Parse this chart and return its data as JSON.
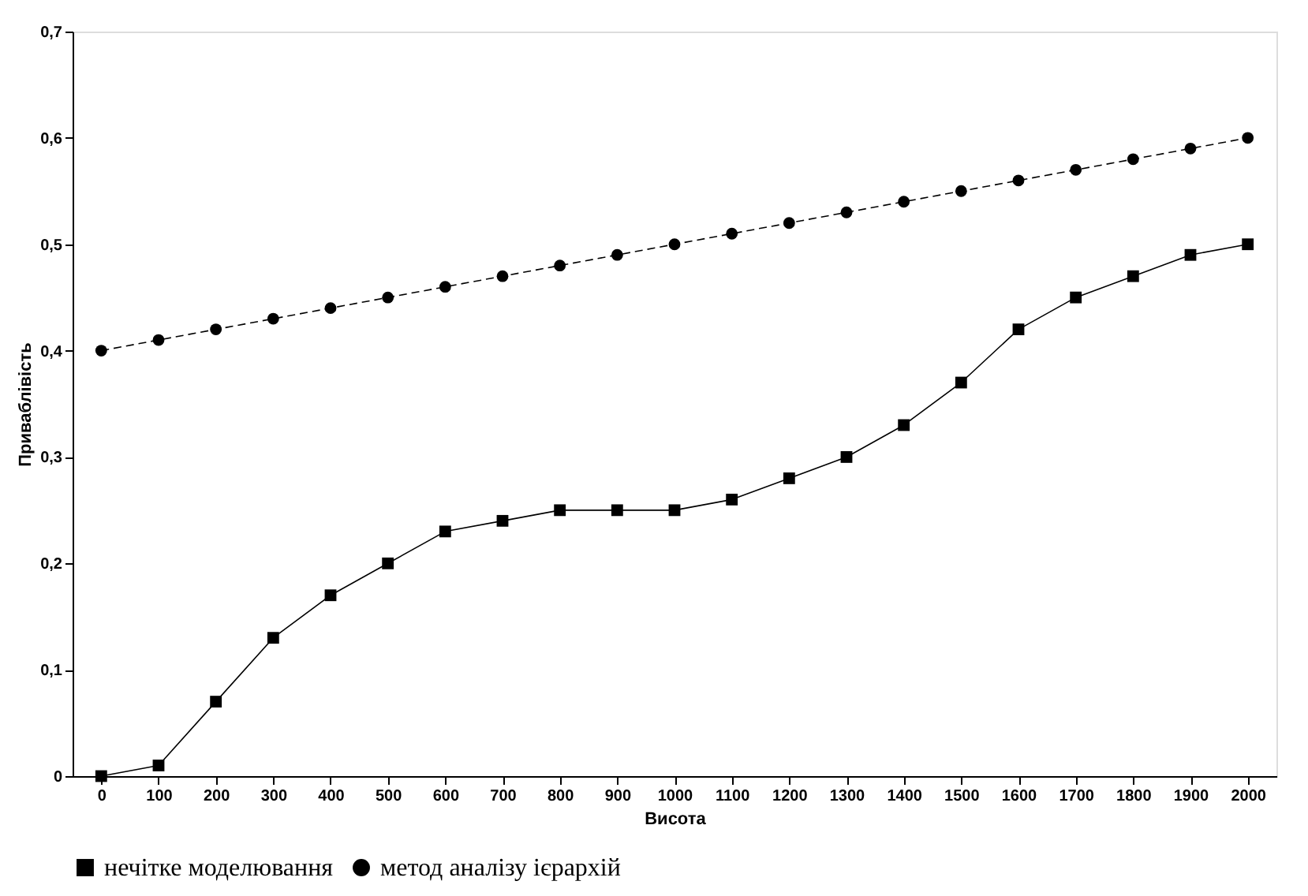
{
  "chart_data": {
    "type": "line",
    "xlabel": "Висота",
    "ylabel": "Приваблівість",
    "categories": [
      "0",
      "100",
      "200",
      "300",
      "400",
      "500",
      "600",
      "700",
      "800",
      "900",
      "1000",
      "1100",
      "1200",
      "1300",
      "1400",
      "1500",
      "1600",
      "1700",
      "1800",
      "1900",
      "2000"
    ],
    "series": [
      {
        "name": "нечітке моделювання",
        "color": "#000000",
        "marker": "square",
        "line_style": "solid",
        "values": [
          0,
          0.01,
          0.07,
          0.13,
          0.17,
          0.2,
          0.23,
          0.24,
          0.25,
          0.25,
          0.25,
          0.26,
          0.28,
          0.3,
          0.33,
          0.37,
          0.42,
          0.45,
          0.47,
          0.49,
          0.5
        ]
      },
      {
        "name": "метод аналізу ієрархій",
        "color": "#000000",
        "marker": "circle",
        "line_style": "dashed",
        "values": [
          0.4,
          0.41,
          0.42,
          0.43,
          0.44,
          0.45,
          0.46,
          0.47,
          0.48,
          0.49,
          0.5,
          0.51,
          0.52,
          0.53,
          0.54,
          0.55,
          0.56,
          0.57,
          0.58,
          0.59,
          0.6
        ]
      }
    ],
    "ylim": [
      0,
      0.7
    ],
    "yticks": [
      {
        "value": 0,
        "label": "0"
      },
      {
        "value": 0.1,
        "label": "0,1"
      },
      {
        "value": 0.2,
        "label": "0,2"
      },
      {
        "value": 0.3,
        "label": "0,3"
      },
      {
        "value": 0.4,
        "label": "0,4"
      },
      {
        "value": 0.5,
        "label": "0,5"
      },
      {
        "value": 0.6,
        "label": "0,6"
      },
      {
        "value": 0.7,
        "label": "0,7"
      }
    ],
    "grid": false,
    "legend": "bottom"
  }
}
